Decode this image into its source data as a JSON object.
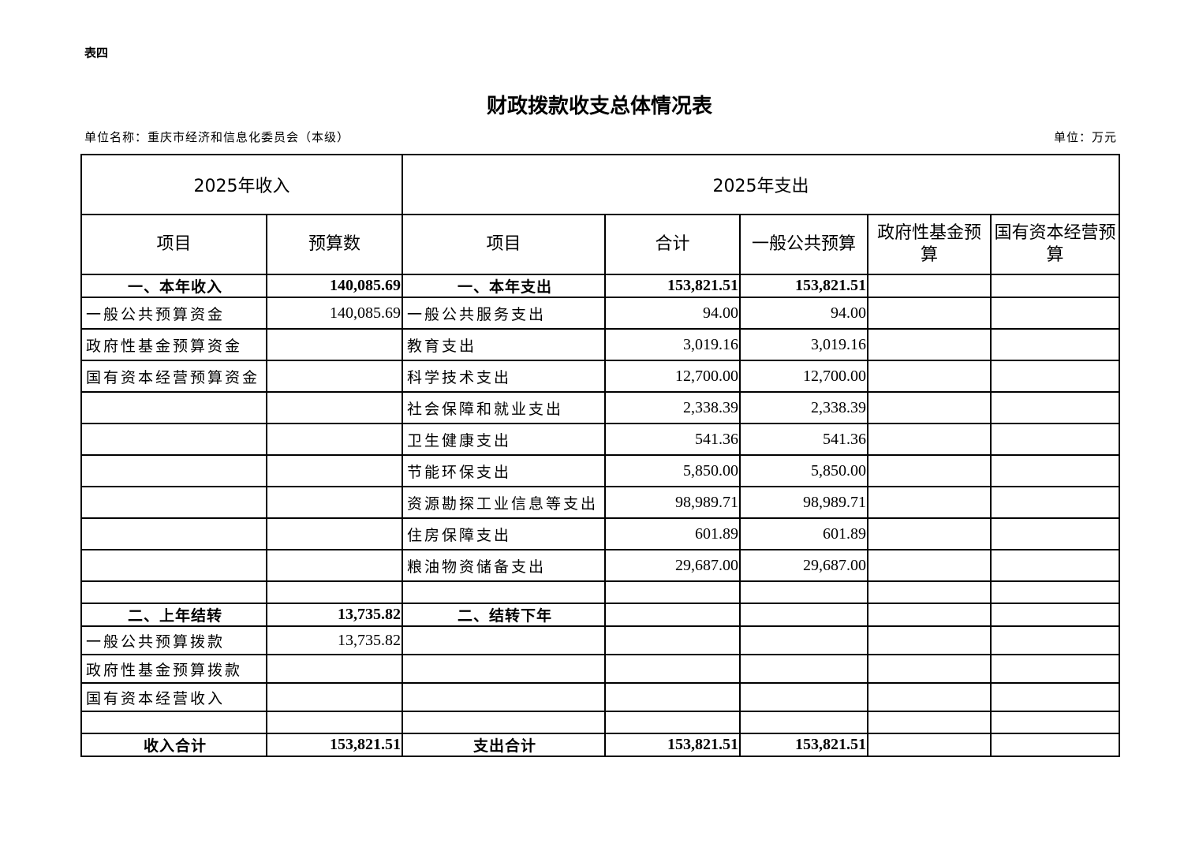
{
  "table_no": "表四",
  "title": "财政拨款收支总体情况表",
  "unit_name": "单位名称：重庆市经济和信息化委员会（本级）",
  "unit": "单位：万元",
  "header": {
    "income": "2025年收入",
    "expense": "2025年支出",
    "cols": [
      "项目",
      "预算数",
      "项目",
      "合计",
      "一般公共预算",
      "政府性基金预算",
      "国有资本经营预算"
    ]
  },
  "rows": [
    {
      "t": "b",
      "c": [
        "一、本年收入",
        "140,085.69",
        "一、本年支出",
        "153,821.51",
        "153,821.51",
        "",
        ""
      ]
    },
    {
      "t": "r",
      "c": [
        "一般公共预算资金",
        "140,085.69",
        "一般公共服务支出",
        "94.00",
        "94.00",
        "",
        ""
      ]
    },
    {
      "t": "r",
      "c": [
        "政府性基金预算资金",
        "",
        "教育支出",
        "3,019.16",
        "3,019.16",
        "",
        ""
      ]
    },
    {
      "t": "r",
      "c": [
        "国有资本经营预算资金",
        "",
        "科学技术支出",
        "12,700.00",
        "12,700.00",
        "",
        ""
      ]
    },
    {
      "t": "r",
      "c": [
        "",
        "",
        "社会保障和就业支出",
        "2,338.39",
        "2,338.39",
        "",
        ""
      ]
    },
    {
      "t": "r",
      "c": [
        "",
        "",
        "卫生健康支出",
        "541.36",
        "541.36",
        "",
        ""
      ]
    },
    {
      "t": "r",
      "c": [
        "",
        "",
        "节能环保支出",
        "5,850.00",
        "5,850.00",
        "",
        ""
      ]
    },
    {
      "t": "r",
      "c": [
        "",
        "",
        "资源勘探工业信息等支出",
        "98,989.71",
        "98,989.71",
        "",
        ""
      ]
    },
    {
      "t": "r",
      "c": [
        "",
        "",
        "住房保障支出",
        "601.89",
        "601.89",
        "",
        ""
      ]
    },
    {
      "t": "r",
      "c": [
        "",
        "",
        "粮油物资储备支出",
        "29,687.00",
        "29,687.00",
        "",
        ""
      ]
    },
    {
      "t": "gap",
      "c": [
        "",
        "",
        "",
        "",
        "",
        "",
        ""
      ]
    },
    {
      "t": "b",
      "c": [
        "二、上年结转",
        "13,735.82",
        "二、结转下年",
        "",
        "",
        "",
        ""
      ]
    },
    {
      "t": "s",
      "c": [
        "一般公共预算拨款",
        "13,735.82",
        "",
        "",
        "",
        "",
        ""
      ]
    },
    {
      "t": "s",
      "c": [
        "政府性基金预算拨款",
        "",
        "",
        "",
        "",
        "",
        ""
      ]
    },
    {
      "t": "s",
      "c": [
        "国有资本经营收入",
        "",
        "",
        "",
        "",
        "",
        ""
      ]
    },
    {
      "t": "gap",
      "c": [
        "",
        "",
        "",
        "",
        "",
        "",
        ""
      ]
    },
    {
      "t": "b",
      "c": [
        "收入合计",
        "153,821.51",
        "支出合计",
        "153,821.51",
        "153,821.51",
        "",
        ""
      ]
    }
  ]
}
